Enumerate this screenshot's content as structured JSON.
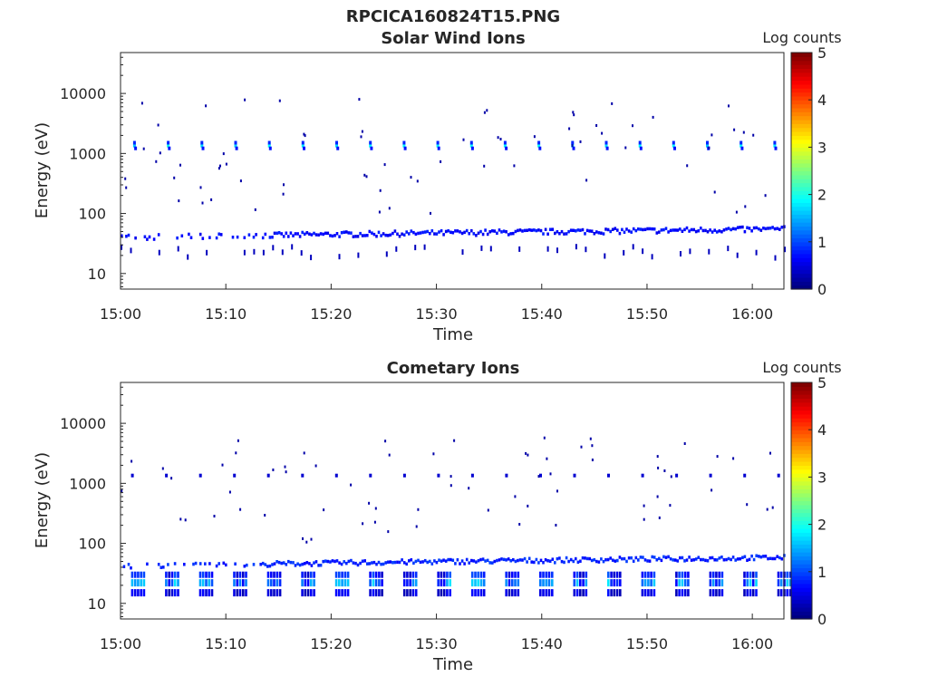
{
  "figure_title": "RPCICA160824T15.PNG",
  "chart_data": [
    {
      "type": "heatmap",
      "title": "Solar Wind Ions",
      "xlabel": "Time",
      "ylabel": "Energy (eV)",
      "yscale": "log",
      "ylim": [
        5.5,
        48000
      ],
      "xlim": [
        "15:00",
        "16:03"
      ],
      "xticks": [
        "15:00",
        "15:10",
        "15:20",
        "15:30",
        "15:40",
        "15:50",
        "16:00"
      ],
      "yticks": [
        "10",
        "100",
        "1000",
        "10000"
      ],
      "colorbar": {
        "label": "Log counts",
        "range": [
          0,
          5
        ],
        "ticks": [
          "0",
          "1",
          "2",
          "3",
          "4",
          "5"
        ],
        "colormap": "jet"
      },
      "features": [
        {
          "name": "solar wind peak (periodic bursts, ~every 3 min)",
          "energy_eV": 1350,
          "log_counts": 1.6
        },
        {
          "name": "low-energy band",
          "energy_eV": [
            40,
            55
          ],
          "log_counts": 0.5
        },
        {
          "name": "low-energy sporadic",
          "energy_eV": [
            18,
            28
          ],
          "log_counts": 0.3
        },
        {
          "name": "sparse scattered counts",
          "energy_eV": [
            100,
            9000
          ],
          "log_counts": 0.2
        }
      ]
    },
    {
      "type": "heatmap",
      "title": "Cometary Ions",
      "xlabel": "Time",
      "ylabel": "Energy (eV)",
      "yscale": "log",
      "ylim": [
        5.5,
        48000
      ],
      "xlim": [
        "15:00",
        "16:03"
      ],
      "xticks": [
        "15:00",
        "15:10",
        "15:20",
        "15:30",
        "15:40",
        "15:50",
        "16:00"
      ],
      "yticks": [
        "10",
        "100",
        "1000",
        "10000"
      ],
      "colorbar": {
        "label": "Log counts",
        "range": [
          0,
          5
        ],
        "ticks": [
          "0",
          "1",
          "2",
          "3",
          "4",
          "5"
        ],
        "colormap": "jet"
      },
      "features": [
        {
          "name": "cometary ion bursts (~every 3 min)",
          "energy_eV": [
            14,
            34
          ],
          "log_counts": 1.5
        },
        {
          "name": "band",
          "energy_eV": [
            42,
            58
          ],
          "log_counts": 0.6
        },
        {
          "name": "faint 1.3 keV signal",
          "energy_eV": 1350,
          "log_counts": 0.4
        },
        {
          "name": "sparse scattered counts",
          "energy_eV": [
            100,
            6000
          ],
          "log_counts": 0.2
        }
      ]
    }
  ]
}
